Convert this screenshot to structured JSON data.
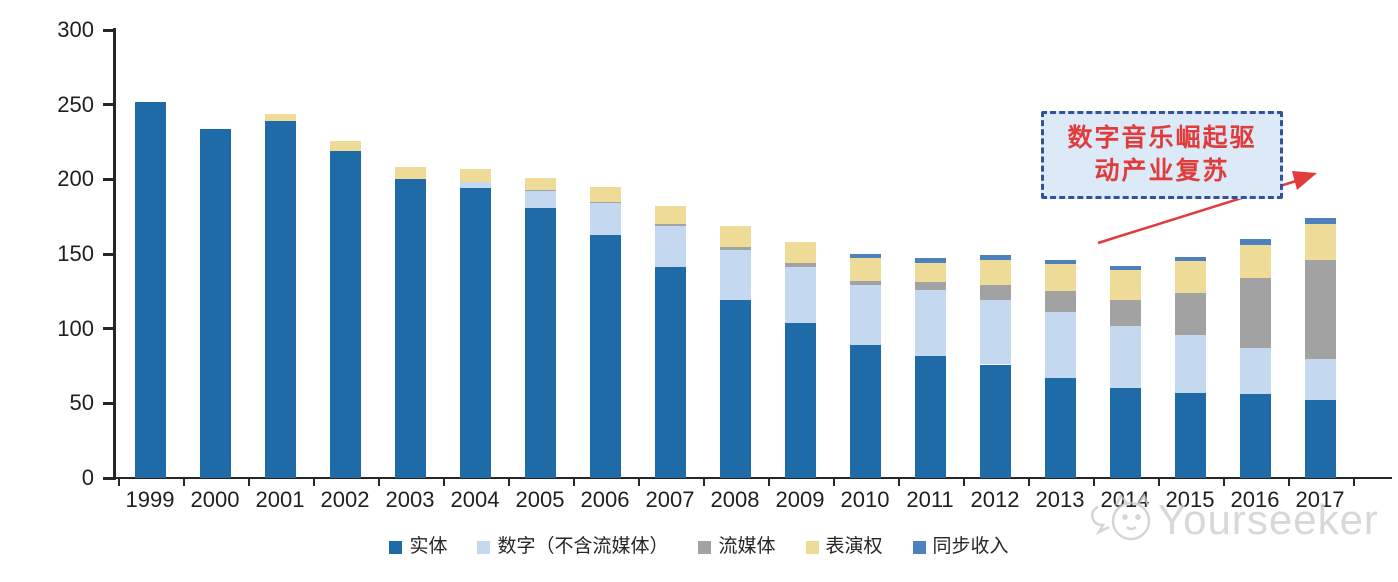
{
  "chart_data": {
    "type": "bar",
    "stacked": true,
    "title": "",
    "xlabel": "",
    "ylabel": "",
    "ylim": [
      0,
      300
    ],
    "yticks": [
      0,
      50,
      100,
      150,
      200,
      250,
      300
    ],
    "grid": false,
    "legend_position": "bottom",
    "categories": [
      "1999",
      "2000",
      "2001",
      "2002",
      "2003",
      "2004",
      "2005",
      "2006",
      "2007",
      "2008",
      "2009",
      "2010",
      "2011",
      "2012",
      "2013",
      "2014",
      "2015",
      "2016",
      "2017"
    ],
    "series": [
      {
        "key": "physical",
        "label": "实体",
        "color": "#1F6BA8",
        "values": [
          252,
          234,
          239,
          219,
          200,
          194,
          181,
          163,
          141,
          119,
          104,
          89,
          82,
          76,
          67,
          60,
          57,
          56,
          52
        ]
      },
      {
        "key": "digital-excl-streaming",
        "label": "数字（不含流媒体）",
        "color": "#C4D9EF",
        "values": [
          0,
          0,
          0,
          0,
          0,
          4,
          11,
          21,
          28,
          34,
          37,
          40,
          44,
          43,
          44,
          42,
          39,
          31,
          28
        ]
      },
      {
        "key": "streaming",
        "label": "流媒体",
        "color": "#A2A2A2",
        "values": [
          0,
          0,
          0,
          0,
          0,
          0,
          1,
          1,
          1,
          2,
          3,
          3,
          5,
          10,
          14,
          17,
          28,
          47,
          66
        ]
      },
      {
        "key": "performance-rights",
        "label": "表演权",
        "color": "#EDDB97",
        "values": [
          0,
          0,
          5,
          7,
          8,
          9,
          8,
          10,
          12,
          14,
          14,
          15,
          13,
          17,
          18,
          20,
          21,
          22,
          24
        ]
      },
      {
        "key": "sync-revenue",
        "label": "同步收入",
        "color": "#4D81BD",
        "values": [
          0,
          0,
          0,
          0,
          0,
          0,
          0,
          0,
          0,
          0,
          0,
          3,
          3,
          3,
          3,
          3,
          3,
          4,
          4
        ]
      }
    ]
  },
  "annotation": {
    "line1": "数字音乐崛起驱",
    "line2": "动产业复苏",
    "text_color": "#E03C3C",
    "box_fill": "#DCE9F7",
    "box_border": "#34519E",
    "arrow_color": "#E23B3B"
  },
  "watermark": {
    "text": "Yourseeker",
    "logo": "cat-logo-icon",
    "color": "#D2D2D2"
  }
}
